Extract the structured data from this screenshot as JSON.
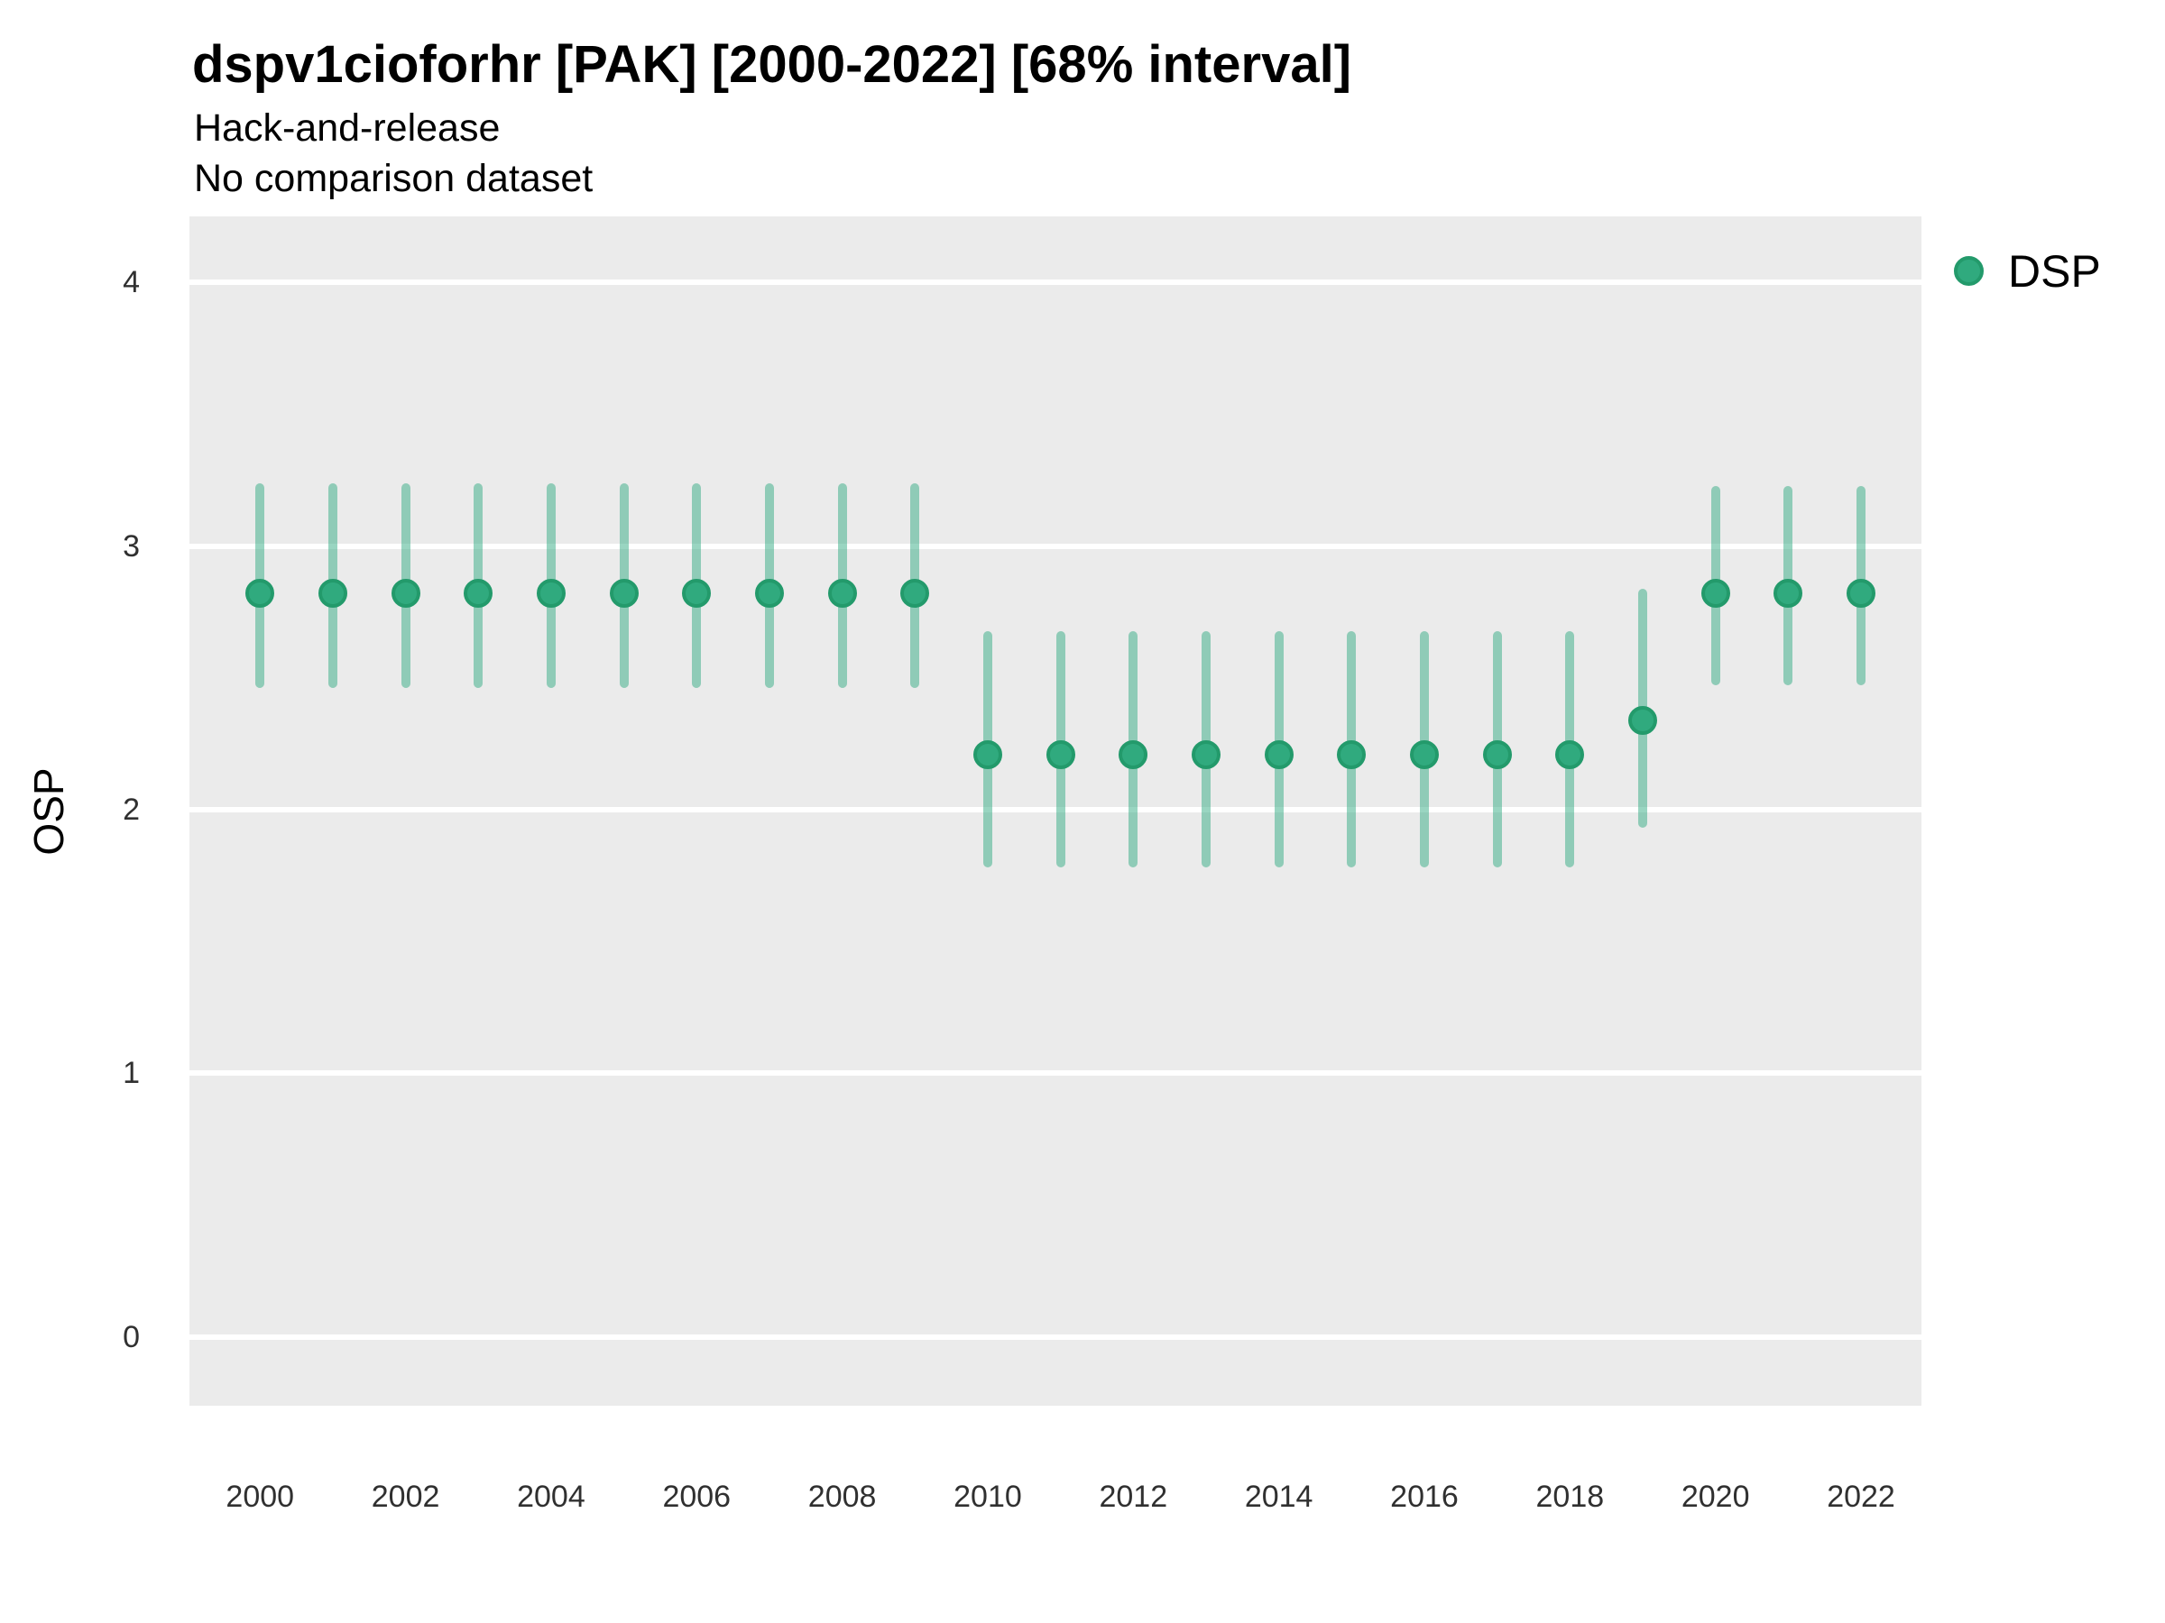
{
  "header": {
    "title": "dspv1cioforhr [PAK] [2000-2022] [68% interval]",
    "subtitle1": "Hack-and-release",
    "subtitle2": "No comparison dataset"
  },
  "axes": {
    "y_label": "OSP",
    "x_label": ""
  },
  "legend": {
    "position": "right-top",
    "items": [
      {
        "label": "DSP",
        "swatch": "filled-circle",
        "color": "#2FA87C"
      }
    ]
  },
  "colors": {
    "panel_background": "#EBEBEB",
    "gridline": "#FFFFFF",
    "point_fill": "#30AA7E",
    "point_ring": "#239A6B",
    "interval_fill": "#2AA87E",
    "interval_opacity": 0.48,
    "axis_text": "#303030",
    "title_text": "#000000"
  },
  "chart_data": {
    "type": "scatter",
    "subtype": "point-with-interval (pointrange)",
    "title": "dspv1cioforhr [PAK] [2000-2022] [68% interval]",
    "subtitle": [
      "Hack-and-release",
      "No comparison dataset"
    ],
    "xlabel": "",
    "ylabel": "OSP",
    "xlim": [
      1999.03,
      2022.83
    ],
    "ylim": [
      -0.26,
      4.25
    ],
    "xticks": [
      2000,
      2002,
      2004,
      2006,
      2008,
      2010,
      2012,
      2014,
      2016,
      2018,
      2020,
      2022
    ],
    "yticks": [
      0,
      1,
      2,
      3,
      4
    ],
    "grid": "horizontal-major-only",
    "legend_position": "right-top",
    "interval_level": "68%",
    "series": [
      {
        "name": "DSP",
        "x": [
          2000,
          2001,
          2002,
          2003,
          2004,
          2005,
          2006,
          2007,
          2008,
          2009,
          2010,
          2011,
          2012,
          2013,
          2014,
          2015,
          2016,
          2017,
          2018,
          2019,
          2020,
          2021,
          2022
        ],
        "y": [
          2.82,
          2.82,
          2.82,
          2.82,
          2.82,
          2.82,
          2.82,
          2.82,
          2.82,
          2.82,
          2.21,
          2.21,
          2.21,
          2.21,
          2.21,
          2.21,
          2.21,
          2.21,
          2.21,
          2.34,
          2.82,
          2.82,
          2.82
        ],
        "y_low": [
          2.48,
          2.48,
          2.48,
          2.48,
          2.48,
          2.48,
          2.48,
          2.48,
          2.48,
          2.48,
          1.8,
          1.8,
          1.8,
          1.8,
          1.8,
          1.8,
          1.8,
          1.8,
          1.8,
          1.95,
          2.49,
          2.49,
          2.49
        ],
        "y_high": [
          3.22,
          3.22,
          3.22,
          3.22,
          3.22,
          3.22,
          3.22,
          3.22,
          3.22,
          3.22,
          2.66,
          2.66,
          2.66,
          2.66,
          2.66,
          2.66,
          2.66,
          2.66,
          2.66,
          2.82,
          3.21,
          3.21,
          3.21
        ]
      }
    ]
  }
}
